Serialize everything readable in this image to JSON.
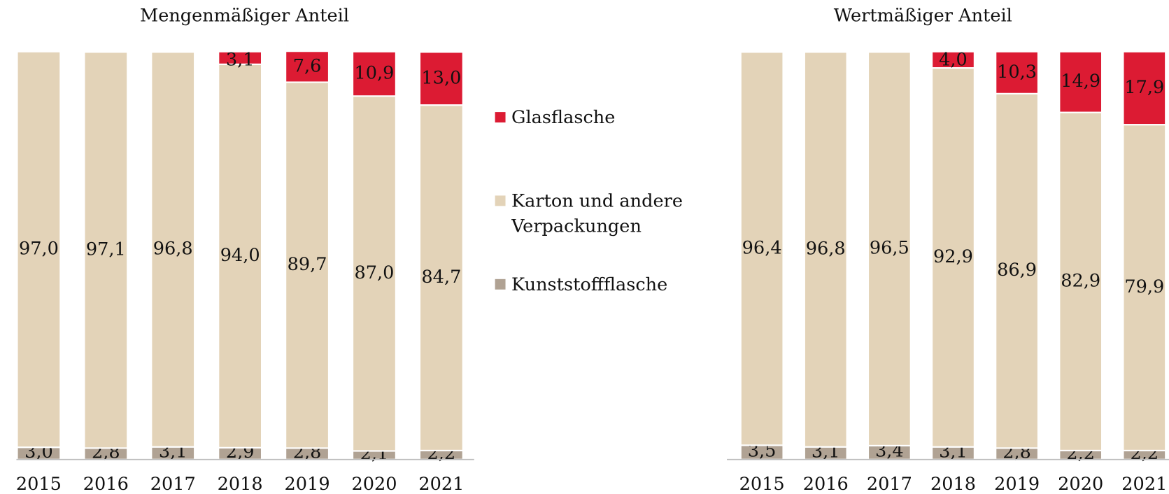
{
  "chart_data": [
    {
      "type": "stacked-bar",
      "title": "Mengenmäßiger Anteil",
      "categories": [
        "2015",
        "2016",
        "2017",
        "2018",
        "2019",
        "2020",
        "2021"
      ],
      "ylim": [
        0,
        100
      ],
      "series": [
        {
          "name": "Kunststoffflasche",
          "color": "#b0a293",
          "values": [
            3.0,
            2.8,
            3.1,
            2.9,
            2.8,
            2.1,
            2.2
          ],
          "value_labels": [
            "3,0",
            "2,8",
            "3,1",
            "2,9",
            "2,8",
            "2,1",
            "2,2"
          ]
        },
        {
          "name": "Karton und andere Verpackungen",
          "color": "#e3d3b8",
          "values": [
            97.0,
            97.1,
            96.8,
            94.0,
            89.7,
            87.0,
            84.7
          ],
          "value_labels": [
            "97,0",
            "97,1",
            "96,8",
            "94,0",
            "89,7",
            "87,0",
            "84,7"
          ]
        },
        {
          "name": "Glasflasche",
          "color": "#dc1b33",
          "values": [
            null,
            null,
            null,
            3.1,
            7.6,
            10.9,
            13.0
          ],
          "value_labels": [
            null,
            null,
            null,
            "3,1",
            "7,6",
            "10,9",
            "13,0"
          ]
        }
      ]
    },
    {
      "type": "stacked-bar",
      "title": "Wertmäßiger Anteil",
      "categories": [
        "2015",
        "2016",
        "2017",
        "2018",
        "2019",
        "2020",
        "2021"
      ],
      "ylim": [
        0,
        100
      ],
      "series": [
        {
          "color": "#b0a293",
          "values": [
            3.5,
            3.1,
            3.4,
            3.1,
            2.8,
            2.2,
            2.2
          ],
          "value_labels": [
            "3,5",
            "3,1",
            "3,4",
            "3,1",
            "2,8",
            "2,2",
            "2,2"
          ]
        },
        {
          "color": "#e3d3b8",
          "values": [
            96.4,
            96.8,
            96.5,
            92.9,
            86.9,
            82.9,
            79.9
          ],
          "value_labels": [
            "96,4",
            "96,8",
            "96,5",
            "92,9",
            "86,9",
            "82,9",
            "79,9"
          ]
        },
        {
          "color": "#dc1b33",
          "values": [
            null,
            null,
            null,
            4.0,
            10.3,
            14.9,
            17.9
          ],
          "value_labels": [
            null,
            null,
            null,
            "4,0",
            "10,3",
            "14,9",
            "17,9"
          ]
        }
      ]
    }
  ]
}
